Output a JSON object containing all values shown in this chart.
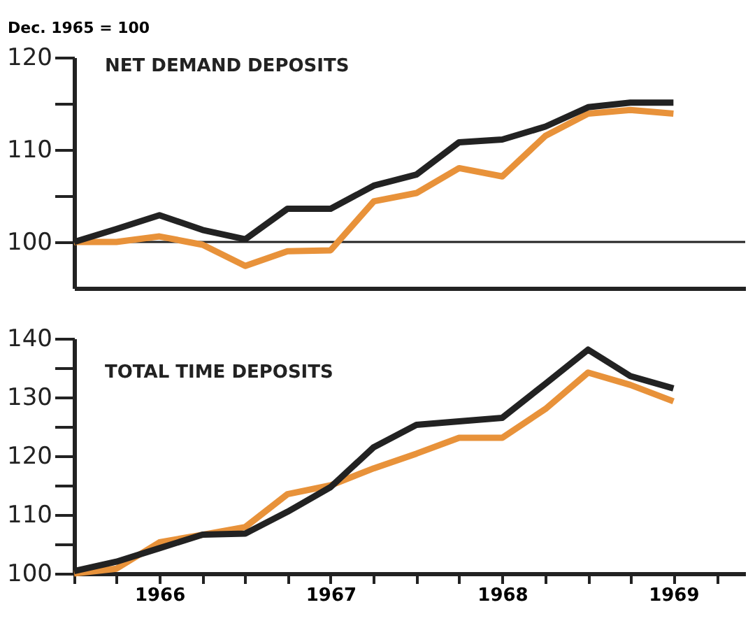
{
  "chart_data": [
    {
      "type": "line",
      "title": "NET DEMAND DEPOSITS",
      "ylabel": "Dec. 1965 = 100",
      "x": [
        "1965-12",
        "1966-03",
        "1966-06",
        "1966-09",
        "1966-12",
        "1967-03",
        "1967-06",
        "1967-09",
        "1967-12",
        "1968-03",
        "1968-06",
        "1968-09",
        "1968-12",
        "1969-03",
        "1969-06"
      ],
      "series": [
        {
          "color": "#222222",
          "values": [
            100,
            101.4,
            102.9,
            101.3,
            100.3,
            103.6,
            103.6,
            106.1,
            107.3,
            110.8,
            111.1,
            112.5,
            114.6,
            115.1,
            115.1
          ]
        },
        {
          "color": "#e8923a",
          "values": [
            100,
            100,
            100.6,
            99.7,
            97.4,
            99.0,
            99.1,
            104.4,
            105.3,
            108.0,
            107.1,
            111.5,
            113.9,
            114.3,
            113.9
          ]
        }
      ],
      "xlim": [
        "1965-12",
        "1969-11"
      ],
      "ylim": [
        95,
        120
      ],
      "yticks": [
        100,
        {
          "value": 105,
          "label": null
        },
        110,
        {
          "value": 115,
          "label": null
        },
        120
      ],
      "ref_lines": [
        {
          "axis": "y",
          "value": 100,
          "label": null,
          "color": "#222222"
        }
      ],
      "tick_labels": "y",
      "grid": false,
      "line_style": "solid",
      "marker": "none"
    },
    {
      "type": "line",
      "title": "TOTAL TIME DEPOSITS",
      "x": [
        "1965-12",
        "1966-03",
        "1966-06",
        "1966-09",
        "1966-12",
        "1967-03",
        "1967-06",
        "1967-09",
        "1967-12",
        "1968-03",
        "1968-06",
        "1968-09",
        "1968-12",
        "1969-03",
        "1969-06"
      ],
      "series": [
        {
          "color": "#222222",
          "values": [
            100.4,
            102,
            104.3,
            106.6,
            106.8,
            110.5,
            114.7,
            121.5,
            125.3,
            125.9,
            126.5,
            132.3,
            138.1,
            133.6,
            131.5
          ]
        },
        {
          "color": "#e8923a",
          "values": [
            100,
            100.8,
            105.3,
            106.6,
            107.9,
            113.5,
            115.0,
            117.9,
            120.4,
            123.1,
            123.1,
            128.0,
            134.2,
            132.1,
            129.3
          ]
        }
      ],
      "xlim": [
        "1965-12",
        "1969-11"
      ],
      "xticks": [
        {
          "value": "1965-12",
          "label": null
        },
        {
          "value": "1966-03",
          "label": null
        },
        {
          "value": "1966-06",
          "label": "1966"
        },
        {
          "value": "1966-09",
          "label": null
        },
        {
          "value": "1966-12",
          "label": null
        },
        {
          "value": "1967-03",
          "label": null
        },
        {
          "value": "1967-06",
          "label": "1967"
        },
        {
          "value": "1967-09",
          "label": null
        },
        {
          "value": "1967-12",
          "label": null
        },
        {
          "value": "1968-03",
          "label": null
        },
        {
          "value": "1968-06",
          "label": "1968"
        },
        {
          "value": "1968-09",
          "label": null
        },
        {
          "value": "1968-12",
          "label": null
        },
        {
          "value": "1969-03",
          "label": null
        },
        {
          "value": "1969-06",
          "label": "1969"
        },
        {
          "value": "1969-09",
          "label": null
        }
      ],
      "ylim": [
        100,
        140
      ],
      "yticks": [
        100,
        {
          "value": 105,
          "label": null
        },
        110,
        {
          "value": 115,
          "label": null
        },
        120,
        {
          "value": 125,
          "label": null
        },
        130,
        {
          "value": 135,
          "label": null
        },
        140
      ],
      "grid": false,
      "line_style": "solid",
      "marker": "none"
    }
  ]
}
